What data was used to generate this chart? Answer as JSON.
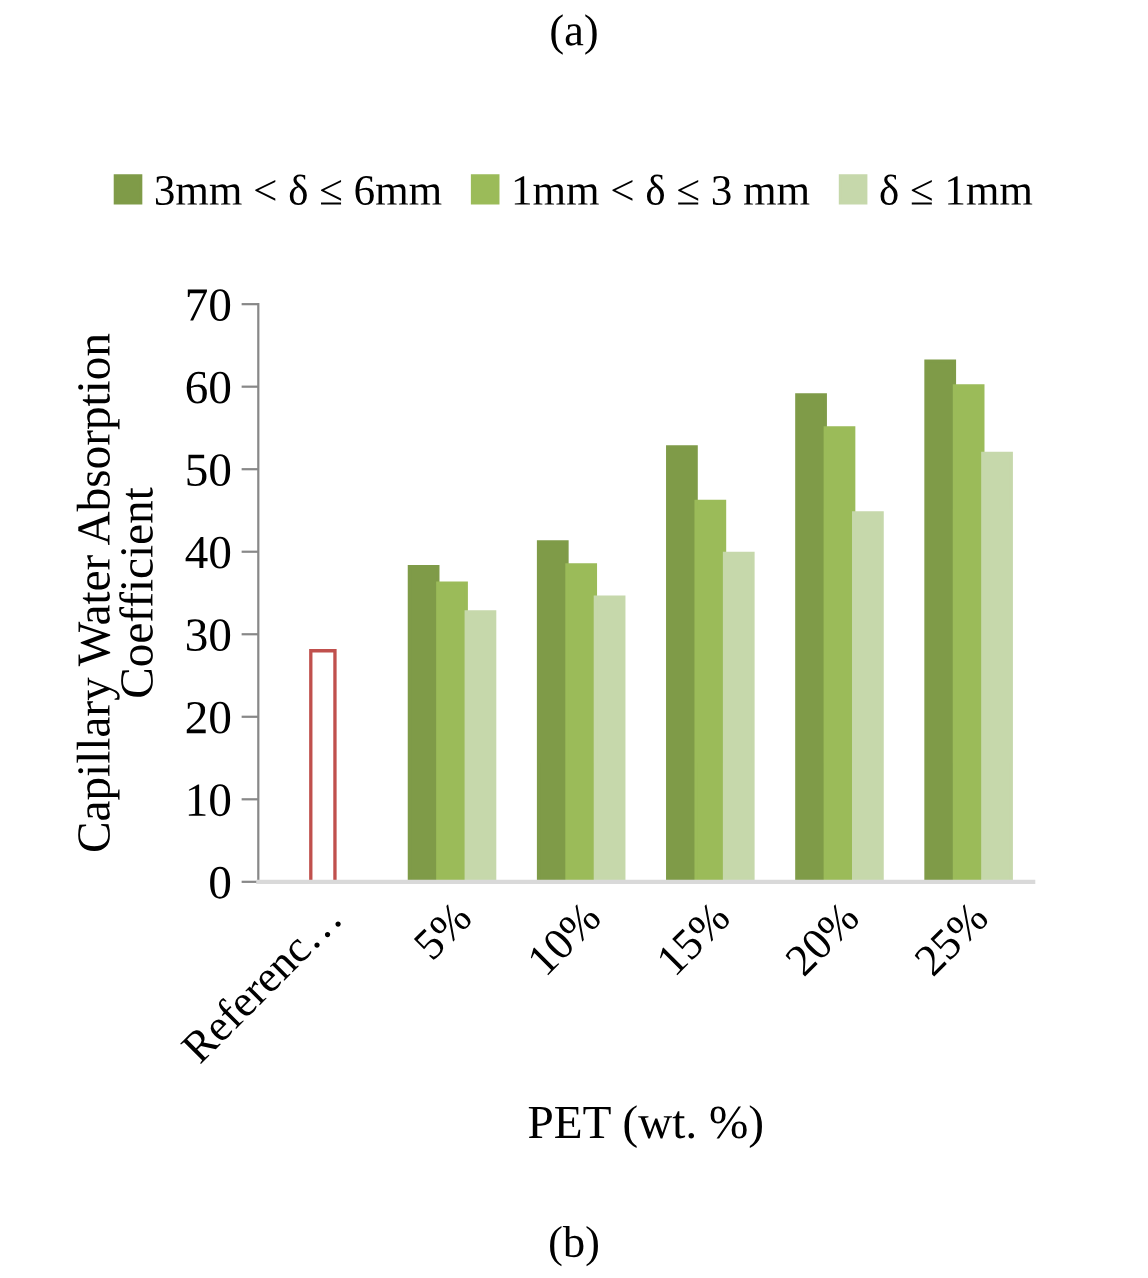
{
  "chart_data": {
    "type": "bar",
    "xlabel": "PET (wt. %)",
    "ylabel": "Capillary Water Absorption\nCoefficient",
    "categories": [
      "Referenc…",
      "5%",
      "10%",
      "15%",
      "20%",
      "25%"
    ],
    "series": [
      {
        "name": "3mm < δ ≤ 6mm",
        "color": "#7f9b48",
        "values": [
          null,
          38.2,
          41.2,
          52.7,
          59.0,
          63.1
        ]
      },
      {
        "name": "1mm < δ ≤ 3 mm",
        "color": "#9bbb59",
        "colors": [
          "#c0504d",
          "#9bbb59",
          "#9bbb59",
          "#9bbb59",
          "#9bbb59",
          "#9bbb59"
        ],
        "values": [
          28.0,
          36.2,
          38.4,
          46.1,
          55.0,
          60.1
        ]
      },
      {
        "name": "δ ≤ 1mm",
        "color": "#c6d8ab",
        "values": [
          null,
          32.7,
          34.5,
          39.8,
          44.7,
          51.9
        ]
      }
    ],
    "ylim": [
      0,
      70
    ],
    "yticks": [
      0,
      10,
      20,
      30,
      40,
      50,
      60,
      70
    ],
    "grid": false,
    "legend": "top",
    "annotations": [
      "(a)",
      "(b)"
    ]
  }
}
